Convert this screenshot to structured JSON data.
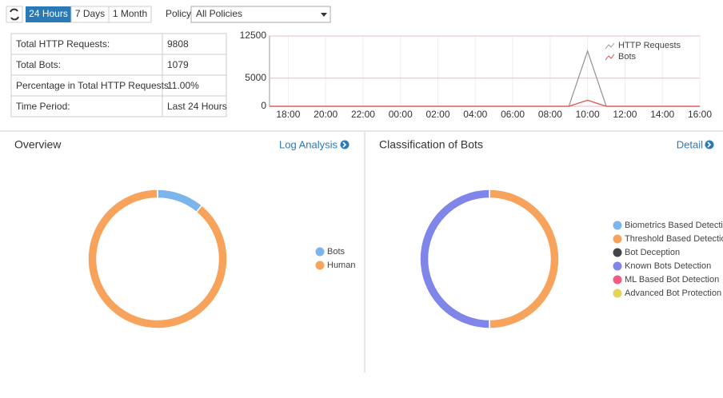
{
  "toolbar": {
    "ranges": [
      "24 Hours",
      "7 Days",
      "1 Month"
    ],
    "policy_label": "Policy",
    "policy_value": "All Policies"
  },
  "summary": {
    "rows": [
      [
        "Total HTTP Requests:",
        9808
      ],
      [
        "Total Bots:",
        1079
      ],
      [
        "Percentage in Total HTTP Requests:",
        "11.00%"
      ],
      [
        "Time Period:",
        "Last 24 Hours"
      ]
    ]
  },
  "trend": {
    "type": "line",
    "categories": [
      null,
      "18:00",
      null,
      "20:00",
      null,
      "22:00",
      null,
      "00:00",
      null,
      "02:00",
      null,
      "04:00",
      null,
      "06:00",
      null,
      "08:00",
      null,
      "10:00",
      null,
      "12:00",
      null,
      "14:00",
      null,
      "16:00"
    ],
    "series": [
      {
        "name": "HTTP Requests",
        "color": "#999999",
        "values": [
          0,
          0,
          0,
          0,
          0,
          0,
          0,
          0,
          0,
          0,
          0,
          0,
          0,
          0,
          0,
          0,
          0,
          9808,
          0,
          0,
          0,
          0,
          0,
          0
        ]
      },
      {
        "name": "Bots",
        "color": "#e05050",
        "values": [
          0,
          0,
          0,
          0,
          0,
          0,
          0,
          0,
          0,
          0,
          0,
          0,
          0,
          0,
          0,
          0,
          0,
          1079,
          0,
          0,
          0,
          0,
          0,
          0
        ]
      }
    ],
    "ylim": [
      0,
      12500
    ],
    "yticks": [
      0,
      5000,
      12500
    ],
    "grid": true,
    "legend": "top-right"
  },
  "overview": {
    "title": "Overview",
    "link": "Log Analysis",
    "chart": {
      "type": "donut",
      "categories": [
        "Bots",
        "Human"
      ],
      "values": [
        1079,
        8729
      ],
      "colors": [
        "#7cb5ec",
        "#f7a35c"
      ]
    }
  },
  "classification": {
    "title": "Classification of Bots",
    "link": "Detail",
    "chart": {
      "type": "donut",
      "categories": [
        "Biometrics Based Detection",
        "Threshold Based Detection",
        "Bot Deception",
        "Known Bots Detection",
        "ML Based Bot Detection",
        "Advanced Bot Protection"
      ],
      "values": [
        0,
        50,
        0,
        50,
        0,
        0
      ],
      "colors": [
        "#7cb5ec",
        "#f7a35c",
        "#434348",
        "#8085e9",
        "#f15c80",
        "#e4d354"
      ]
    }
  }
}
